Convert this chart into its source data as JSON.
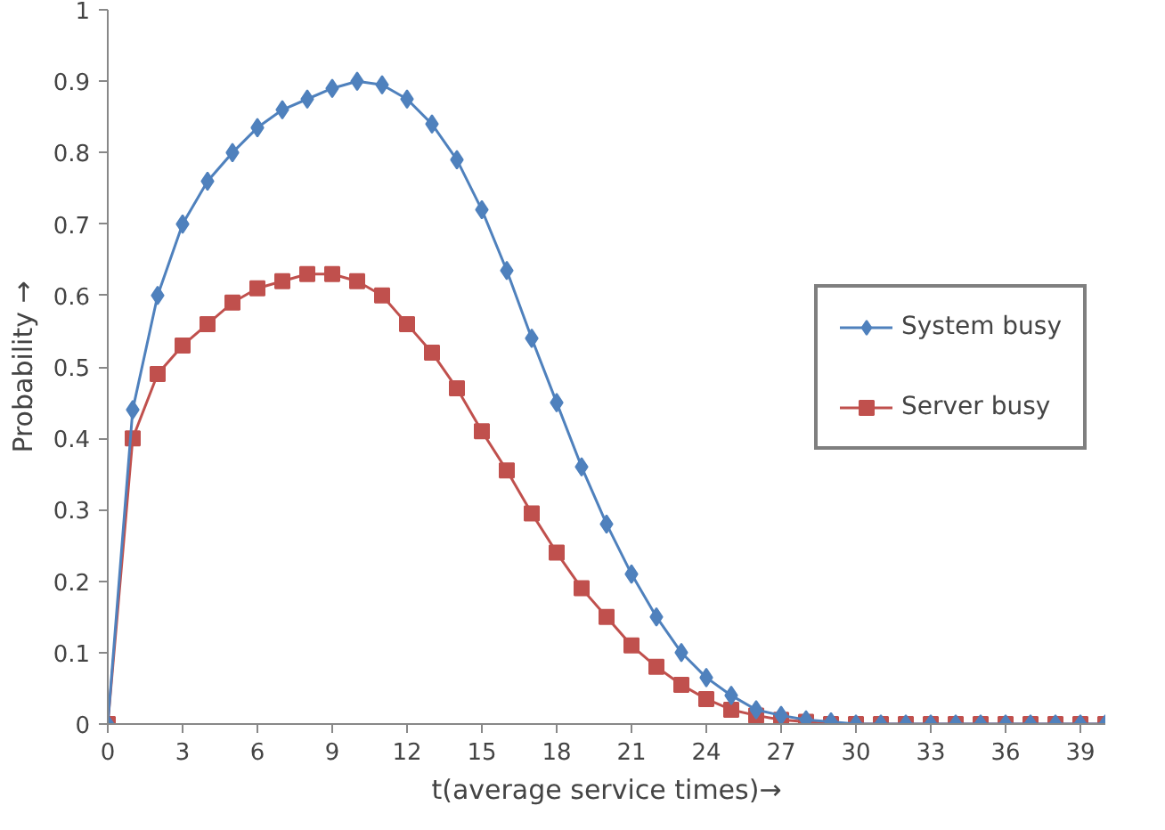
{
  "chart_data": {
    "type": "line",
    "xlabel": "t(average service times)→",
    "ylabel": "Probability →",
    "x": [
      0,
      1,
      2,
      3,
      4,
      5,
      6,
      7,
      8,
      9,
      10,
      11,
      12,
      13,
      14,
      15,
      16,
      17,
      18,
      19,
      20,
      21,
      22,
      23,
      24,
      25,
      26,
      27,
      28,
      29,
      30,
      31,
      32,
      33,
      34,
      35,
      36,
      37,
      38,
      39,
      40
    ],
    "series": [
      {
        "name": "System busy",
        "color": "#4f81bd",
        "marker": "diamond",
        "values": [
          0,
          0.44,
          0.6,
          0.7,
          0.76,
          0.8,
          0.835,
          0.86,
          0.875,
          0.89,
          0.9,
          0.895,
          0.875,
          0.84,
          0.79,
          0.72,
          0.635,
          0.54,
          0.45,
          0.36,
          0.28,
          0.21,
          0.15,
          0.1,
          0.065,
          0.04,
          0.02,
          0.012,
          0.006,
          0.003,
          0,
          0,
          0,
          0,
          0,
          0,
          0,
          0,
          0,
          0,
          0
        ]
      },
      {
        "name": "Server busy",
        "color": "#c0504d",
        "marker": "square",
        "values": [
          0,
          0.4,
          0.49,
          0.53,
          0.56,
          0.59,
          0.61,
          0.62,
          0.63,
          0.63,
          0.62,
          0.6,
          0.56,
          0.52,
          0.47,
          0.41,
          0.355,
          0.295,
          0.24,
          0.19,
          0.15,
          0.11,
          0.08,
          0.055,
          0.035,
          0.02,
          0.012,
          0.006,
          0.003,
          0,
          0,
          0,
          0,
          0,
          0,
          0,
          0,
          0,
          0,
          0,
          0
        ]
      }
    ],
    "xlim": [
      0,
      40
    ],
    "xticks": [
      0,
      3,
      6,
      9,
      12,
      15,
      18,
      21,
      24,
      27,
      30,
      33,
      36,
      39
    ],
    "ylim": [
      0,
      1
    ],
    "yticks": [
      0,
      0.1,
      0.2,
      0.3,
      0.4,
      0.5,
      0.6,
      0.7,
      0.8,
      0.9,
      1
    ],
    "grid": false,
    "legend": "right",
    "line_style": "solid"
  }
}
